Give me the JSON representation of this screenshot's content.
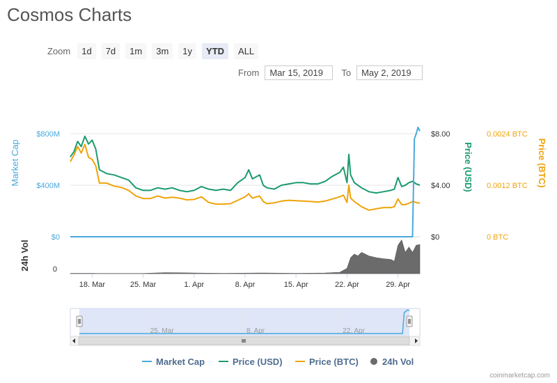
{
  "page": {
    "title": "Cosmos Charts",
    "credit": "coinmarketcap.com"
  },
  "zoom": {
    "label": "Zoom",
    "options": [
      "1d",
      "7d",
      "1m",
      "3m",
      "1y",
      "YTD",
      "ALL"
    ],
    "selected": "YTD"
  },
  "range": {
    "from_label": "From",
    "from_value": "Mar 15, 2019",
    "to_label": "To",
    "to_value": "May 2, 2019"
  },
  "colors": {
    "market_cap": "#4aa9dd",
    "price_usd": "#1a9b6c",
    "price_btc": "#f0a30a",
    "volume": "#6b6b6b",
    "navigator_fill": "#d6e0f5"
  },
  "chart_data": {
    "type": "line",
    "x_start": "2019-03-15",
    "x_end": "2019-05-02",
    "x_ticks": [
      {
        "date": "2019-03-18",
        "label": "18. Mar"
      },
      {
        "date": "2019-03-25",
        "label": "25. Mar"
      },
      {
        "date": "2019-04-01",
        "label": "1. Apr"
      },
      {
        "date": "2019-04-08",
        "label": "8. Apr"
      },
      {
        "date": "2019-04-15",
        "label": "15. Apr"
      },
      {
        "date": "2019-04-22",
        "label": "22. Apr"
      },
      {
        "date": "2019-04-29",
        "label": "29. Apr"
      }
    ],
    "navigator_ticks": [
      {
        "date": "2019-03-25",
        "label": "25. Mar"
      },
      {
        "date": "2019-04-08",
        "label": "8. Apr"
      },
      {
        "date": "2019-04-22",
        "label": "22. Apr"
      }
    ],
    "axes": {
      "market_cap": {
        "title": "Market Cap",
        "range": [
          0,
          800000000
        ],
        "ticks": [
          {
            "v": 0,
            "label": "$0"
          },
          {
            "v": 400000000,
            "label": "$400M"
          },
          {
            "v": 800000000,
            "label": "$800M"
          }
        ]
      },
      "price_usd": {
        "title": "Price (USD)",
        "range": [
          0,
          8
        ],
        "ticks": [
          {
            "v": 0,
            "label": "$0"
          },
          {
            "v": 4,
            "label": "$4.00"
          },
          {
            "v": 8,
            "label": "$8.00"
          }
        ]
      },
      "price_btc": {
        "title": "Price (BTC)",
        "range": [
          0,
          0.0024
        ],
        "ticks": [
          {
            "v": 0,
            "label": "0 BTC"
          },
          {
            "v": 0.0012,
            "label": "0.0012 BTC"
          },
          {
            "v": 0.0024,
            "label": "0.0024 BTC"
          }
        ]
      },
      "volume": {
        "title": "24h Vol",
        "ticks": [
          {
            "v": 0,
            "label": "0"
          }
        ]
      }
    },
    "grid": true,
    "legend": {
      "placement": "bottom",
      "entries": [
        "Market Cap",
        "Price (USD)",
        "Price (BTC)",
        "24h Vol"
      ]
    },
    "series": [
      {
        "name": "Market Cap",
        "key": "market_cap",
        "points": [
          [
            "2019-03-15",
            0
          ],
          [
            "2019-05-01",
            0
          ],
          [
            "2019-05-01T06:00",
            760000000
          ],
          [
            "2019-05-01T12:00",
            800000000
          ],
          [
            "2019-05-01T18:00",
            850000000
          ],
          [
            "2019-05-02",
            820000000
          ]
        ]
      },
      {
        "name": "Price (USD)",
        "key": "price_usd",
        "points": [
          [
            "2019-03-15",
            6.2
          ],
          [
            "2019-03-15T12:00",
            6.6
          ],
          [
            "2019-03-16",
            7.4
          ],
          [
            "2019-03-16T12:00",
            7.0
          ],
          [
            "2019-03-17",
            7.8
          ],
          [
            "2019-03-17T12:00",
            7.2
          ],
          [
            "2019-03-18",
            7.5
          ],
          [
            "2019-03-18T12:00",
            6.8
          ],
          [
            "2019-03-19",
            5.2
          ],
          [
            "2019-03-20",
            4.9
          ],
          [
            "2019-03-21",
            4.8
          ],
          [
            "2019-03-22",
            4.6
          ],
          [
            "2019-03-23",
            4.4
          ],
          [
            "2019-03-24",
            3.8
          ],
          [
            "2019-03-25",
            3.6
          ],
          [
            "2019-03-26",
            3.6
          ],
          [
            "2019-03-27",
            3.8
          ],
          [
            "2019-03-28",
            3.7
          ],
          [
            "2019-03-29",
            3.8
          ],
          [
            "2019-03-30",
            3.6
          ],
          [
            "2019-03-31",
            3.5
          ],
          [
            "2019-04-01",
            3.6
          ],
          [
            "2019-04-02",
            3.9
          ],
          [
            "2019-04-03",
            3.7
          ],
          [
            "2019-04-04",
            3.6
          ],
          [
            "2019-04-05",
            3.7
          ],
          [
            "2019-04-06",
            3.6
          ],
          [
            "2019-04-07",
            4.2
          ],
          [
            "2019-04-08",
            4.6
          ],
          [
            "2019-04-08T12:00",
            5.2
          ],
          [
            "2019-04-09",
            4.5
          ],
          [
            "2019-04-10",
            4.8
          ],
          [
            "2019-04-10T12:00",
            4.0
          ],
          [
            "2019-04-11",
            3.8
          ],
          [
            "2019-04-12",
            3.7
          ],
          [
            "2019-04-13",
            4.0
          ],
          [
            "2019-04-14",
            4.1
          ],
          [
            "2019-04-15",
            4.2
          ],
          [
            "2019-04-16",
            4.2
          ],
          [
            "2019-04-17",
            4.1
          ],
          [
            "2019-04-18",
            4.1
          ],
          [
            "2019-04-19",
            4.3
          ],
          [
            "2019-04-20",
            4.7
          ],
          [
            "2019-04-21",
            5.0
          ],
          [
            "2019-04-21T12:00",
            5.4
          ],
          [
            "2019-04-22",
            4.2
          ],
          [
            "2019-04-22T06:00",
            6.4
          ],
          [
            "2019-04-22T12:00",
            4.8
          ],
          [
            "2019-04-23",
            4.2
          ],
          [
            "2019-04-24",
            3.8
          ],
          [
            "2019-04-25",
            3.5
          ],
          [
            "2019-04-26",
            3.4
          ],
          [
            "2019-04-27",
            3.5
          ],
          [
            "2019-04-28",
            3.6
          ],
          [
            "2019-04-28T12:00",
            3.7
          ],
          [
            "2019-04-29",
            4.6
          ],
          [
            "2019-04-29T12:00",
            3.9
          ],
          [
            "2019-04-30",
            4.0
          ],
          [
            "2019-04-30T12:00",
            4.2
          ],
          [
            "2019-05-01",
            4.3
          ],
          [
            "2019-05-01T12:00",
            4.1
          ],
          [
            "2019-05-02",
            4.0
          ]
        ]
      },
      {
        "name": "Price (BTC)",
        "key": "price_btc",
        "points": [
          [
            "2019-03-15",
            0.00175
          ],
          [
            "2019-03-15T12:00",
            0.0019
          ],
          [
            "2019-03-16",
            0.0021
          ],
          [
            "2019-03-16T12:00",
            0.00195
          ],
          [
            "2019-03-17",
            0.00215
          ],
          [
            "2019-03-17T12:00",
            0.00185
          ],
          [
            "2019-03-18",
            0.0018
          ],
          [
            "2019-03-18T12:00",
            0.00165
          ],
          [
            "2019-03-19",
            0.00125
          ],
          [
            "2019-03-20",
            0.00125
          ],
          [
            "2019-03-21",
            0.00118
          ],
          [
            "2019-03-22",
            0.00115
          ],
          [
            "2019-03-23",
            0.00108
          ],
          [
            "2019-03-24",
            0.00095
          ],
          [
            "2019-03-25",
            0.00089
          ],
          [
            "2019-03-26",
            0.00089
          ],
          [
            "2019-03-27",
            0.00095
          ],
          [
            "2019-03-28",
            0.0009
          ],
          [
            "2019-03-29",
            0.00092
          ],
          [
            "2019-03-30",
            0.0009
          ],
          [
            "2019-03-31",
            0.00086
          ],
          [
            "2019-04-01",
            0.00087
          ],
          [
            "2019-04-02",
            0.00093
          ],
          [
            "2019-04-03",
            0.0008
          ],
          [
            "2019-04-04",
            0.00076
          ],
          [
            "2019-04-05",
            0.00076
          ],
          [
            "2019-04-06",
            0.00077
          ],
          [
            "2019-04-07",
            0.00085
          ],
          [
            "2019-04-08",
            0.00093
          ],
          [
            "2019-04-08T12:00",
            0.001
          ],
          [
            "2019-04-09",
            0.0009
          ],
          [
            "2019-04-10",
            0.00095
          ],
          [
            "2019-04-10T12:00",
            0.00082
          ],
          [
            "2019-04-11",
            0.00077
          ],
          [
            "2019-04-12",
            0.00079
          ],
          [
            "2019-04-13",
            0.00083
          ],
          [
            "2019-04-14",
            0.00085
          ],
          [
            "2019-04-15",
            0.00084
          ],
          [
            "2019-04-16",
            0.00083
          ],
          [
            "2019-04-17",
            0.00082
          ],
          [
            "2019-04-18",
            0.00081
          ],
          [
            "2019-04-19",
            0.00083
          ],
          [
            "2019-04-20",
            0.00088
          ],
          [
            "2019-04-21",
            0.00093
          ],
          [
            "2019-04-21T12:00",
            0.00097
          ],
          [
            "2019-04-22",
            0.0008
          ],
          [
            "2019-04-22T06:00",
            0.0012
          ],
          [
            "2019-04-22T12:00",
            0.0009
          ],
          [
            "2019-04-23",
            0.00082
          ],
          [
            "2019-04-24",
            0.0007
          ],
          [
            "2019-04-25",
            0.00062
          ],
          [
            "2019-04-26",
            0.00065
          ],
          [
            "2019-04-27",
            0.00068
          ],
          [
            "2019-04-28",
            0.00068
          ],
          [
            "2019-04-28T12:00",
            0.0007
          ],
          [
            "2019-04-29",
            0.00088
          ],
          [
            "2019-04-29T12:00",
            0.00075
          ],
          [
            "2019-04-30",
            0.00075
          ],
          [
            "2019-04-30T12:00",
            0.00078
          ],
          [
            "2019-05-01",
            0.00082
          ],
          [
            "2019-05-01T12:00",
            0.0008
          ],
          [
            "2019-05-02",
            0.00078
          ]
        ]
      },
      {
        "name": "24h Vol",
        "key": "volume",
        "points": [
          [
            "2019-03-15",
            0.01
          ],
          [
            "2019-03-18",
            0.01
          ],
          [
            "2019-03-19",
            0.005
          ],
          [
            "2019-03-25",
            0.005
          ],
          [
            "2019-03-28",
            0.03
          ],
          [
            "2019-04-01",
            0.02
          ],
          [
            "2019-04-05",
            0.01
          ],
          [
            "2019-04-10",
            0.02
          ],
          [
            "2019-04-15",
            0.01
          ],
          [
            "2019-04-19",
            0.02
          ],
          [
            "2019-04-21",
            0.04
          ],
          [
            "2019-04-22",
            0.15
          ],
          [
            "2019-04-22T12:00",
            0.45
          ],
          [
            "2019-04-23",
            0.55
          ],
          [
            "2019-04-23T12:00",
            0.5
          ],
          [
            "2019-04-24",
            0.6
          ],
          [
            "2019-04-25",
            0.5
          ],
          [
            "2019-04-26",
            0.45
          ],
          [
            "2019-04-27",
            0.42
          ],
          [
            "2019-04-28",
            0.4
          ],
          [
            "2019-04-28T12:00",
            0.35
          ],
          [
            "2019-04-29",
            0.8
          ],
          [
            "2019-04-29T12:00",
            0.95
          ],
          [
            "2019-04-30",
            0.6
          ],
          [
            "2019-04-30T12:00",
            0.75
          ],
          [
            "2019-05-01",
            0.6
          ],
          [
            "2019-05-01T12:00",
            0.8
          ],
          [
            "2019-05-02",
            0.82
          ]
        ]
      }
    ]
  }
}
